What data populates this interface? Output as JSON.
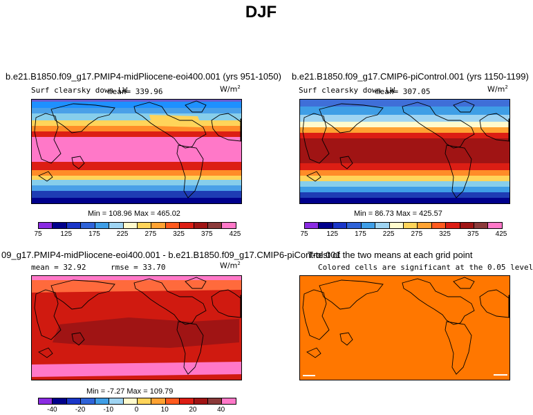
{
  "title": "DJF",
  "panels": {
    "p1": {
      "title": "b.e21.B1850.f09_g17.PMIP4-midPliocene-eoi400.001 (yrs 951-1050)",
      "subtitle": "Surf clearsky down LW",
      "mean": "mean= 339.96",
      "units": "W/m",
      "units_exp": "2",
      "minmax": "Min = 108.96 Max = 465.02"
    },
    "p2": {
      "title": "b.e21.B1850.f09_g17.CMIP6-piControl.001 (yrs 1150-1199)",
      "subtitle": "Surf clearsky down LW",
      "mean": "mean= 307.05",
      "units": "W/m",
      "units_exp": "2",
      "minmax": "Min =  86.73 Max = 425.57"
    },
    "p3": {
      "title": "09_g17.PMIP4-midPliocene-eoi400.001 - b.e21.B1850.f09_g17.CMIP6-piControl.001",
      "mean": "mean =  32.92",
      "rmse": "rmse =  33.70",
      "units": "W/m",
      "units_exp": "2",
      "minmax": "Min =  -7.27 Max = 109.79"
    },
    "p4": {
      "title": "T-test of the two means at each grid point",
      "subtitle": "Colored cells are significant at the 0.05 level"
    }
  },
  "colorbar_abs": {
    "colors": [
      "#8a2be2",
      "#00008b",
      "#1a36c8",
      "#2f63d8",
      "#3f9ee6",
      "#9fd4f2",
      "#fffacd",
      "#ffd45a",
      "#ffa232",
      "#ff5a1e",
      "#dc1e14",
      "#a01414",
      "#8b3a3a",
      "#ff78c8"
    ],
    "labels": [
      "75",
      "125",
      "175",
      "225",
      "275",
      "325",
      "375",
      "425"
    ]
  },
  "colorbar_diff": {
    "colors": [
      "#8a2be2",
      "#00008b",
      "#1a36c8",
      "#2f63d8",
      "#3f9ee6",
      "#9fd4f2",
      "#fffacd",
      "#ffd45a",
      "#ffa232",
      "#ff5a1e",
      "#dc1e14",
      "#a01414",
      "#8b3a3a",
      "#ff78c8"
    ],
    "labels": [
      "-40",
      "-20",
      "-10",
      "0",
      "10",
      "20",
      "40"
    ]
  },
  "map_colors": {
    "ttest_fill": "#ff7700",
    "diff_base": "#d01a10",
    "diff_dark": "#a01414"
  }
}
